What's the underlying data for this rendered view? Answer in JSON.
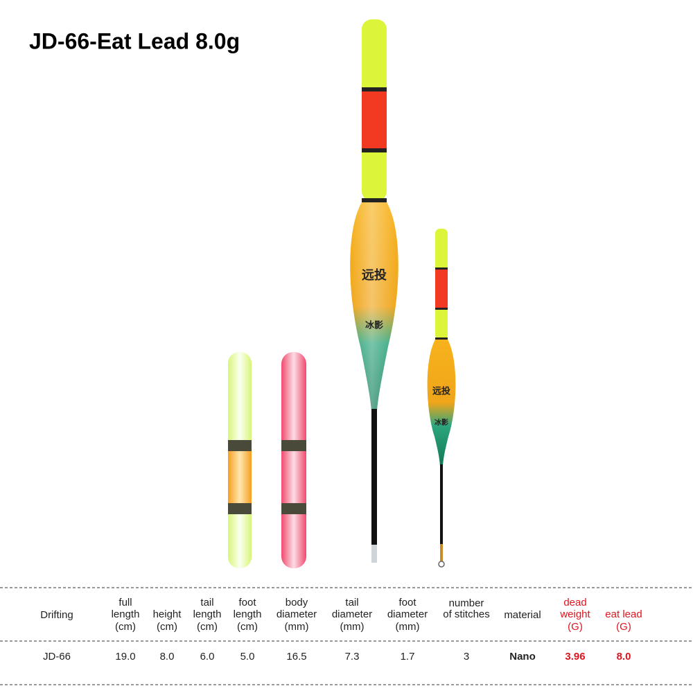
{
  "header": {
    "title": "JD-66-Eat Lead 8.0g"
  },
  "floats": {
    "large": [
      "远投",
      "冰影"
    ],
    "small": [
      "远投",
      "冰影"
    ]
  },
  "table": {
    "header": [
      {
        "lines": [
          "Drifting"
        ]
      },
      {
        "lines": [
          "full",
          "length",
          "(cm)"
        ]
      },
      {
        "lines": [
          "height",
          "(cm)"
        ]
      },
      {
        "lines": [
          "tail",
          "length",
          "(cm)"
        ]
      },
      {
        "lines": [
          "foot",
          "length",
          "(cm)"
        ]
      },
      {
        "lines": [
          "body",
          "diameter",
          "(mm)"
        ]
      },
      {
        "lines": [
          "tail",
          "diameter",
          "(mm)"
        ]
      },
      {
        "lines": [
          "foot",
          "diameter",
          "(mm)"
        ]
      },
      {
        "lines": [
          "number",
          "of stitches"
        ]
      },
      {
        "lines": [
          "material"
        ]
      },
      {
        "lines": [
          "dead",
          "weight",
          "(G)"
        ]
      },
      {
        "lines": [
          "eat lead",
          "(G)"
        ]
      }
    ],
    "rows": [
      [
        "JD-66",
        "19.0",
        "8.0",
        "6.0",
        "5.0",
        "16.5",
        "7.3",
        "1.7",
        "3",
        "Nano",
        "3.96",
        "8.0"
      ]
    ]
  }
}
